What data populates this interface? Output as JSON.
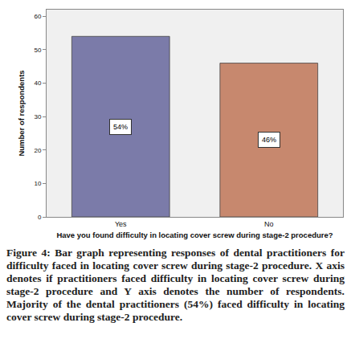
{
  "chart_data": {
    "type": "bar",
    "xlabel": "Have you found difficulty in locating cover screw during stage-2 procedure?",
    "ylabel": "Number of respondents",
    "categories": [
      "Yes",
      "No"
    ],
    "values": [
      54,
      46
    ],
    "value_labels": [
      "54%",
      "46%"
    ],
    "data_labels": true,
    "colors": [
      "#7b7ba9",
      "#c7886e"
    ],
    "ylim": [
      0,
      62
    ],
    "yticks": [
      0,
      10,
      20,
      30,
      40,
      50,
      60
    ],
    "grid": false,
    "caption": "Figure 4: Bar graph representing responses of dental practitioners for difficulty faced in locating cover screw during stage-2 procedure. X axis denotes if practitioners faced difficulty in locating cover screw during stage-2 procedure and Y axis denotes the number of respondents. Majority of the dental practitioners (54%) faced difficulty in locating cover screw during stage-2 procedure."
  }
}
